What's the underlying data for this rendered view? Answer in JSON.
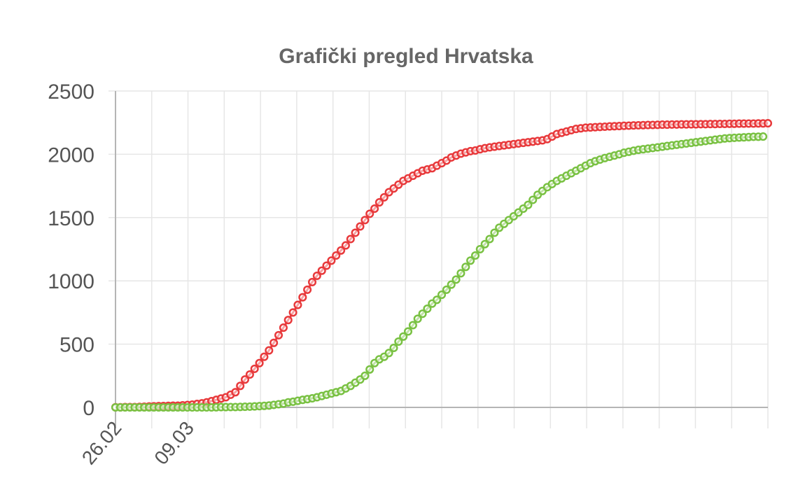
{
  "chart_data": {
    "type": "line",
    "title": "Grafički pregled Hrvatska",
    "xlabel": "",
    "ylabel": "",
    "ylim": [
      0,
      2500
    ],
    "yticks": [
      "0",
      "500",
      "1000",
      "1500",
      "2000",
      "2500"
    ],
    "x_labels_shown": [
      "26.02",
      "09.03"
    ],
    "x_start": "26.02",
    "grid": true,
    "series": [
      {
        "color": "#e8393b",
        "values": [
          1,
          1,
          2,
          3,
          3,
          4,
          5,
          7,
          9,
          10,
          11,
          12,
          13,
          14,
          16,
          19,
          22,
          27,
          32,
          40,
          50,
          60,
          70,
          80,
          100,
          120,
          170,
          220,
          260,
          305,
          350,
          400,
          450,
          510,
          570,
          630,
          690,
          750,
          810,
          870,
          930,
          990,
          1040,
          1080,
          1120,
          1160,
          1200,
          1240,
          1280,
          1330,
          1380,
          1430,
          1480,
          1530,
          1570,
          1620,
          1660,
          1700,
          1730,
          1760,
          1790,
          1810,
          1830,
          1850,
          1870,
          1880,
          1890,
          1910,
          1930,
          1950,
          1975,
          1990,
          2005,
          2015,
          2025,
          2030,
          2040,
          2048,
          2055,
          2060,
          2065,
          2070,
          2075,
          2080,
          2085,
          2090,
          2095,
          2100,
          2105,
          2110,
          2120,
          2140,
          2160,
          2170,
          2180,
          2190,
          2200,
          2205,
          2210,
          2212,
          2214,
          2216,
          2218,
          2220,
          2222,
          2223,
          2225,
          2226,
          2228,
          2229,
          2230,
          2231,
          2232,
          2233,
          2234,
          2234,
          2235,
          2235,
          2236,
          2236,
          2237,
          2237,
          2238,
          2238,
          2239,
          2239,
          2240,
          2240,
          2241,
          2241,
          2242,
          2242,
          2243,
          2243,
          2244,
          2244,
          2245
        ]
      },
      {
        "color": "#79c142",
        "values": [
          0,
          0,
          0,
          0,
          0,
          0,
          0,
          0,
          0,
          0,
          0,
          0,
          0,
          0,
          0,
          0,
          0,
          0,
          0,
          0,
          0,
          1,
          2,
          2,
          3,
          3,
          4,
          5,
          6,
          8,
          10,
          12,
          15,
          20,
          25,
          30,
          40,
          45,
          52,
          60,
          65,
          72,
          80,
          90,
          100,
          110,
          120,
          130,
          150,
          170,
          195,
          220,
          250,
          300,
          350,
          380,
          400,
          430,
          470,
          520,
          560,
          600,
          650,
          700,
          740,
          780,
          820,
          850,
          890,
          930,
          970,
          1010,
          1060,
          1110,
          1160,
          1200,
          1250,
          1290,
          1330,
          1380,
          1420,
          1450,
          1480,
          1510,
          1540,
          1570,
          1600,
          1640,
          1680,
          1710,
          1740,
          1765,
          1790,
          1810,
          1830,
          1850,
          1870,
          1890,
          1910,
          1930,
          1945,
          1958,
          1970,
          1980,
          1990,
          2000,
          2012,
          2020,
          2028,
          2035,
          2040,
          2045,
          2050,
          2055,
          2060,
          2065,
          2070,
          2075,
          2080,
          2085,
          2090,
          2095,
          2100,
          2105,
          2110,
          2115,
          2120,
          2125,
          2128,
          2130,
          2132,
          2134,
          2136,
          2138,
          2139,
          2140
        ]
      }
    ]
  }
}
